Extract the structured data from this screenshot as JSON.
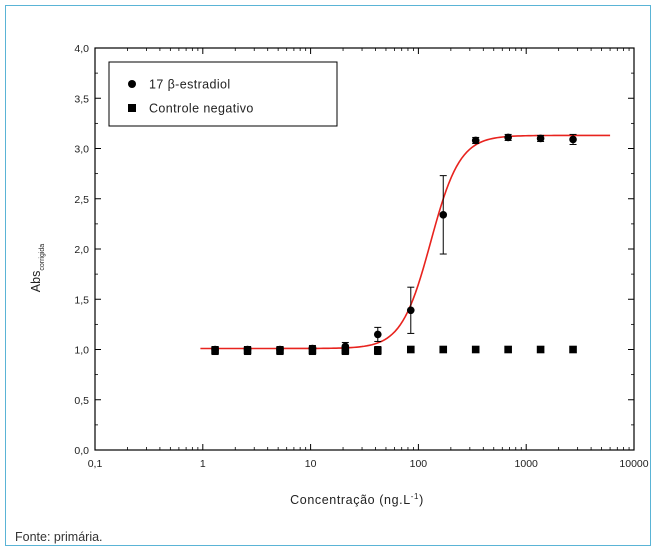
{
  "figure": {
    "source_note": "Fonte: primária."
  },
  "chart_data": {
    "type": "scatter",
    "x_scale": "log",
    "xlim": [
      0.1,
      10000
    ],
    "ylim": [
      0.0,
      4.0
    ],
    "x_ticks": [
      0.1,
      1,
      10,
      100,
      1000,
      10000
    ],
    "x_tick_labels": [
      "0,1",
      "1",
      "10",
      "100",
      "1000",
      "10000"
    ],
    "y_ticks": [
      0.0,
      0.5,
      1.0,
      1.5,
      2.0,
      2.5,
      3.0,
      3.5,
      4.0
    ],
    "y_tick_labels": [
      "0,0",
      "0,5",
      "1,0",
      "1,5",
      "2,0",
      "2,5",
      "3,0",
      "3,5",
      "4,0"
    ],
    "xlabel": "Concentração (ng.L",
    "xlabel_sup": "-1",
    "xlabel_end": ")",
    "ylabel": "Abs",
    "ylabel_sub": "corrigida",
    "grid": false,
    "legend_position": "top-left",
    "series": [
      {
        "name": "17 β-estradiol",
        "marker": "circle",
        "color": "#000000",
        "x": [
          1.3,
          2.6,
          5.2,
          10.4,
          21,
          42,
          85,
          170,
          340,
          680,
          1360,
          2720
        ],
        "y": [
          1.0,
          1.0,
          1.0,
          1.01,
          1.03,
          1.15,
          1.39,
          2.34,
          3.08,
          3.11,
          3.1,
          3.09
        ],
        "err": [
          0.03,
          0.03,
          0.03,
          0.03,
          0.04,
          0.07,
          0.23,
          0.39,
          0.03,
          0.03,
          0.03,
          0.05
        ]
      },
      {
        "name": "Controle negativo",
        "marker": "square",
        "color": "#000000",
        "x": [
          1.3,
          2.6,
          5.2,
          10.4,
          21,
          42,
          85,
          170,
          340,
          680,
          1360,
          2720
        ],
        "y": [
          0.99,
          0.99,
          0.99,
          0.99,
          0.99,
          0.99,
          1.0,
          1.0,
          1.0,
          1.0,
          1.0,
          1.0
        ],
        "err": [
          0.04,
          0.04,
          0.04,
          0.04,
          0.04,
          0.04,
          0.03,
          0.03,
          0.03,
          0.03,
          0.03,
          0.03
        ]
      }
    ],
    "fit_curve": {
      "color": "#e8231e",
      "x_range": [
        0.95,
        6000
      ],
      "bottom": 1.01,
      "top": 3.13,
      "ec50": 130,
      "hill": 3.2
    }
  }
}
